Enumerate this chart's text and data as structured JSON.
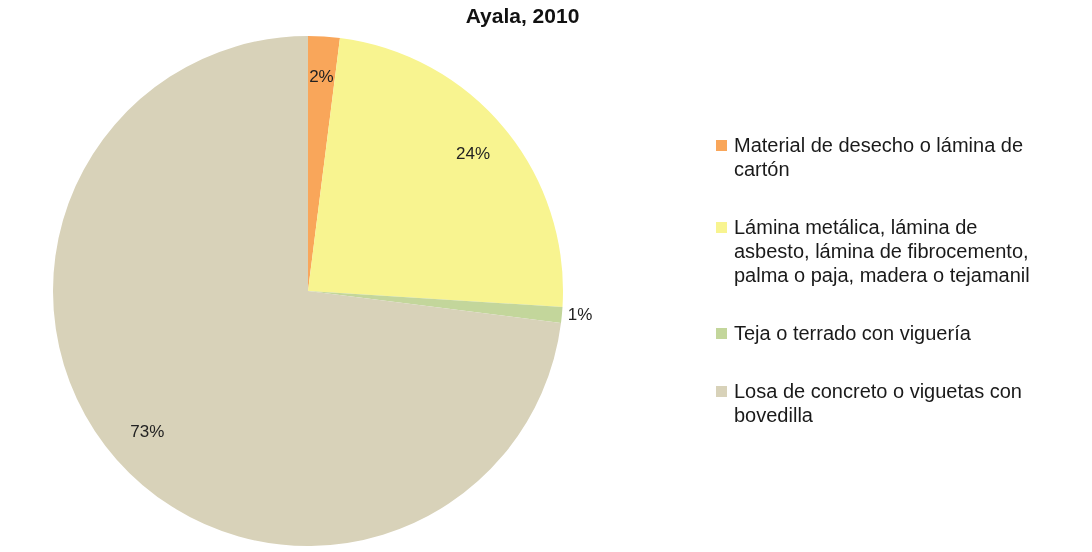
{
  "chart_data": {
    "type": "pie",
    "title": "Ayala, 2010",
    "categories": [
      "Material de desecho o lámina de cartón",
      "Lámina metálica, lámina de asbesto, lámina de fibrocemento, palma o paja, madera o tejamanil",
      "Teja o terrado con viguería",
      "Losa de concreto o viguetas con bovedilla"
    ],
    "values": [
      2,
      24,
      1,
      73
    ],
    "colors": [
      "#f9a65a",
      "#f8f490",
      "#c3d69b",
      "#d8d2b9"
    ],
    "value_labels": [
      "2%",
      "24%",
      "1%",
      "73%"
    ],
    "legend": "right"
  }
}
